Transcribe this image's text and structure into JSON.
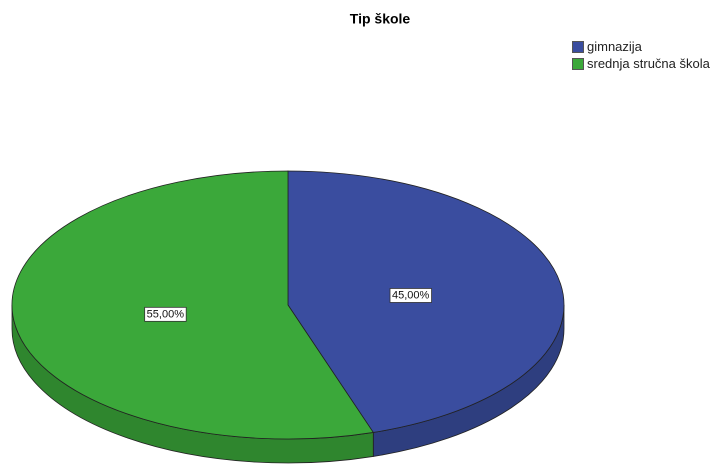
{
  "chart_data": {
    "type": "pie",
    "title": "Tip škole",
    "categories": [
      "gimnazija",
      "srednja stručna škola"
    ],
    "values": [
      45,
      55
    ],
    "value_labels": [
      "45,00%",
      "55,00%"
    ],
    "colors": [
      "#3a4d9f",
      "#3ba83a"
    ],
    "legend": "top-right"
  }
}
